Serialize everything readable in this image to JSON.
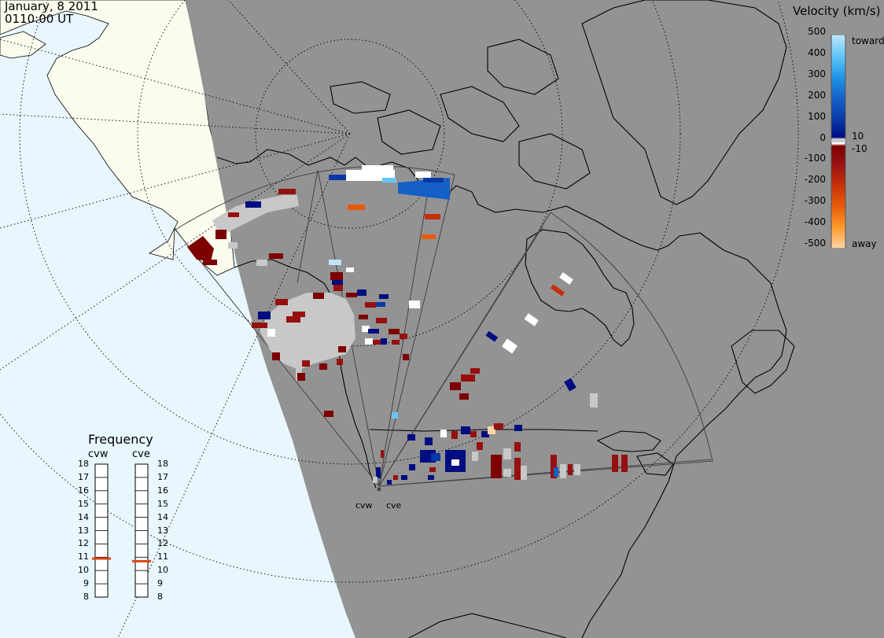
{
  "header": {
    "date": "January, 8 2011",
    "time": "0110:00 UT"
  },
  "colors": {
    "background_ocean": "#e8f6fd",
    "land_dayside": "#fbfbee",
    "nightside": "#939393",
    "coastline": "#000000",
    "grid": "#000000",
    "no_data_ground_scatter": "#c8c8c8",
    "frequency_marker": "#dd4411"
  },
  "velocity_scale": {
    "title": "Velocity (km/s)",
    "ticks": [
      "500",
      "400",
      "300",
      "200",
      "100",
      "0",
      "-100",
      "-200",
      "-300",
      "-400",
      "-500"
    ],
    "inner_ticks": [
      "10",
      "-10"
    ],
    "toward_label": "toward",
    "away_label": "away",
    "stops": [
      {
        "value": 500,
        "color": "#bfe6fb"
      },
      {
        "value": 400,
        "color": "#63c6f7"
      },
      {
        "value": 300,
        "color": "#1e96e6"
      },
      {
        "value": 200,
        "color": "#1460c8"
      },
      {
        "value": 100,
        "color": "#0a38a8"
      },
      {
        "value": 10,
        "color": "#000d80"
      },
      {
        "value": -10,
        "color": "#7d0000"
      },
      {
        "value": -100,
        "color": "#961010"
      },
      {
        "value": -200,
        "color": "#c4300a"
      },
      {
        "value": -300,
        "color": "#e85a0a"
      },
      {
        "value": -400,
        "color": "#ff9a2a"
      },
      {
        "value": -500,
        "color": "#fdd6a8"
      }
    ]
  },
  "frequency_panel": {
    "title": "Frequency",
    "radars": [
      {
        "name": "cvw",
        "frequency_mhz": 10.9
      },
      {
        "name": "cve",
        "frequency_mhz": 10.7
      }
    ],
    "scale": [
      "18",
      "17",
      "16",
      "15",
      "14",
      "13",
      "12",
      "11",
      "10",
      "9",
      "8"
    ]
  },
  "sites": [
    "cvw",
    "cve"
  ]
}
